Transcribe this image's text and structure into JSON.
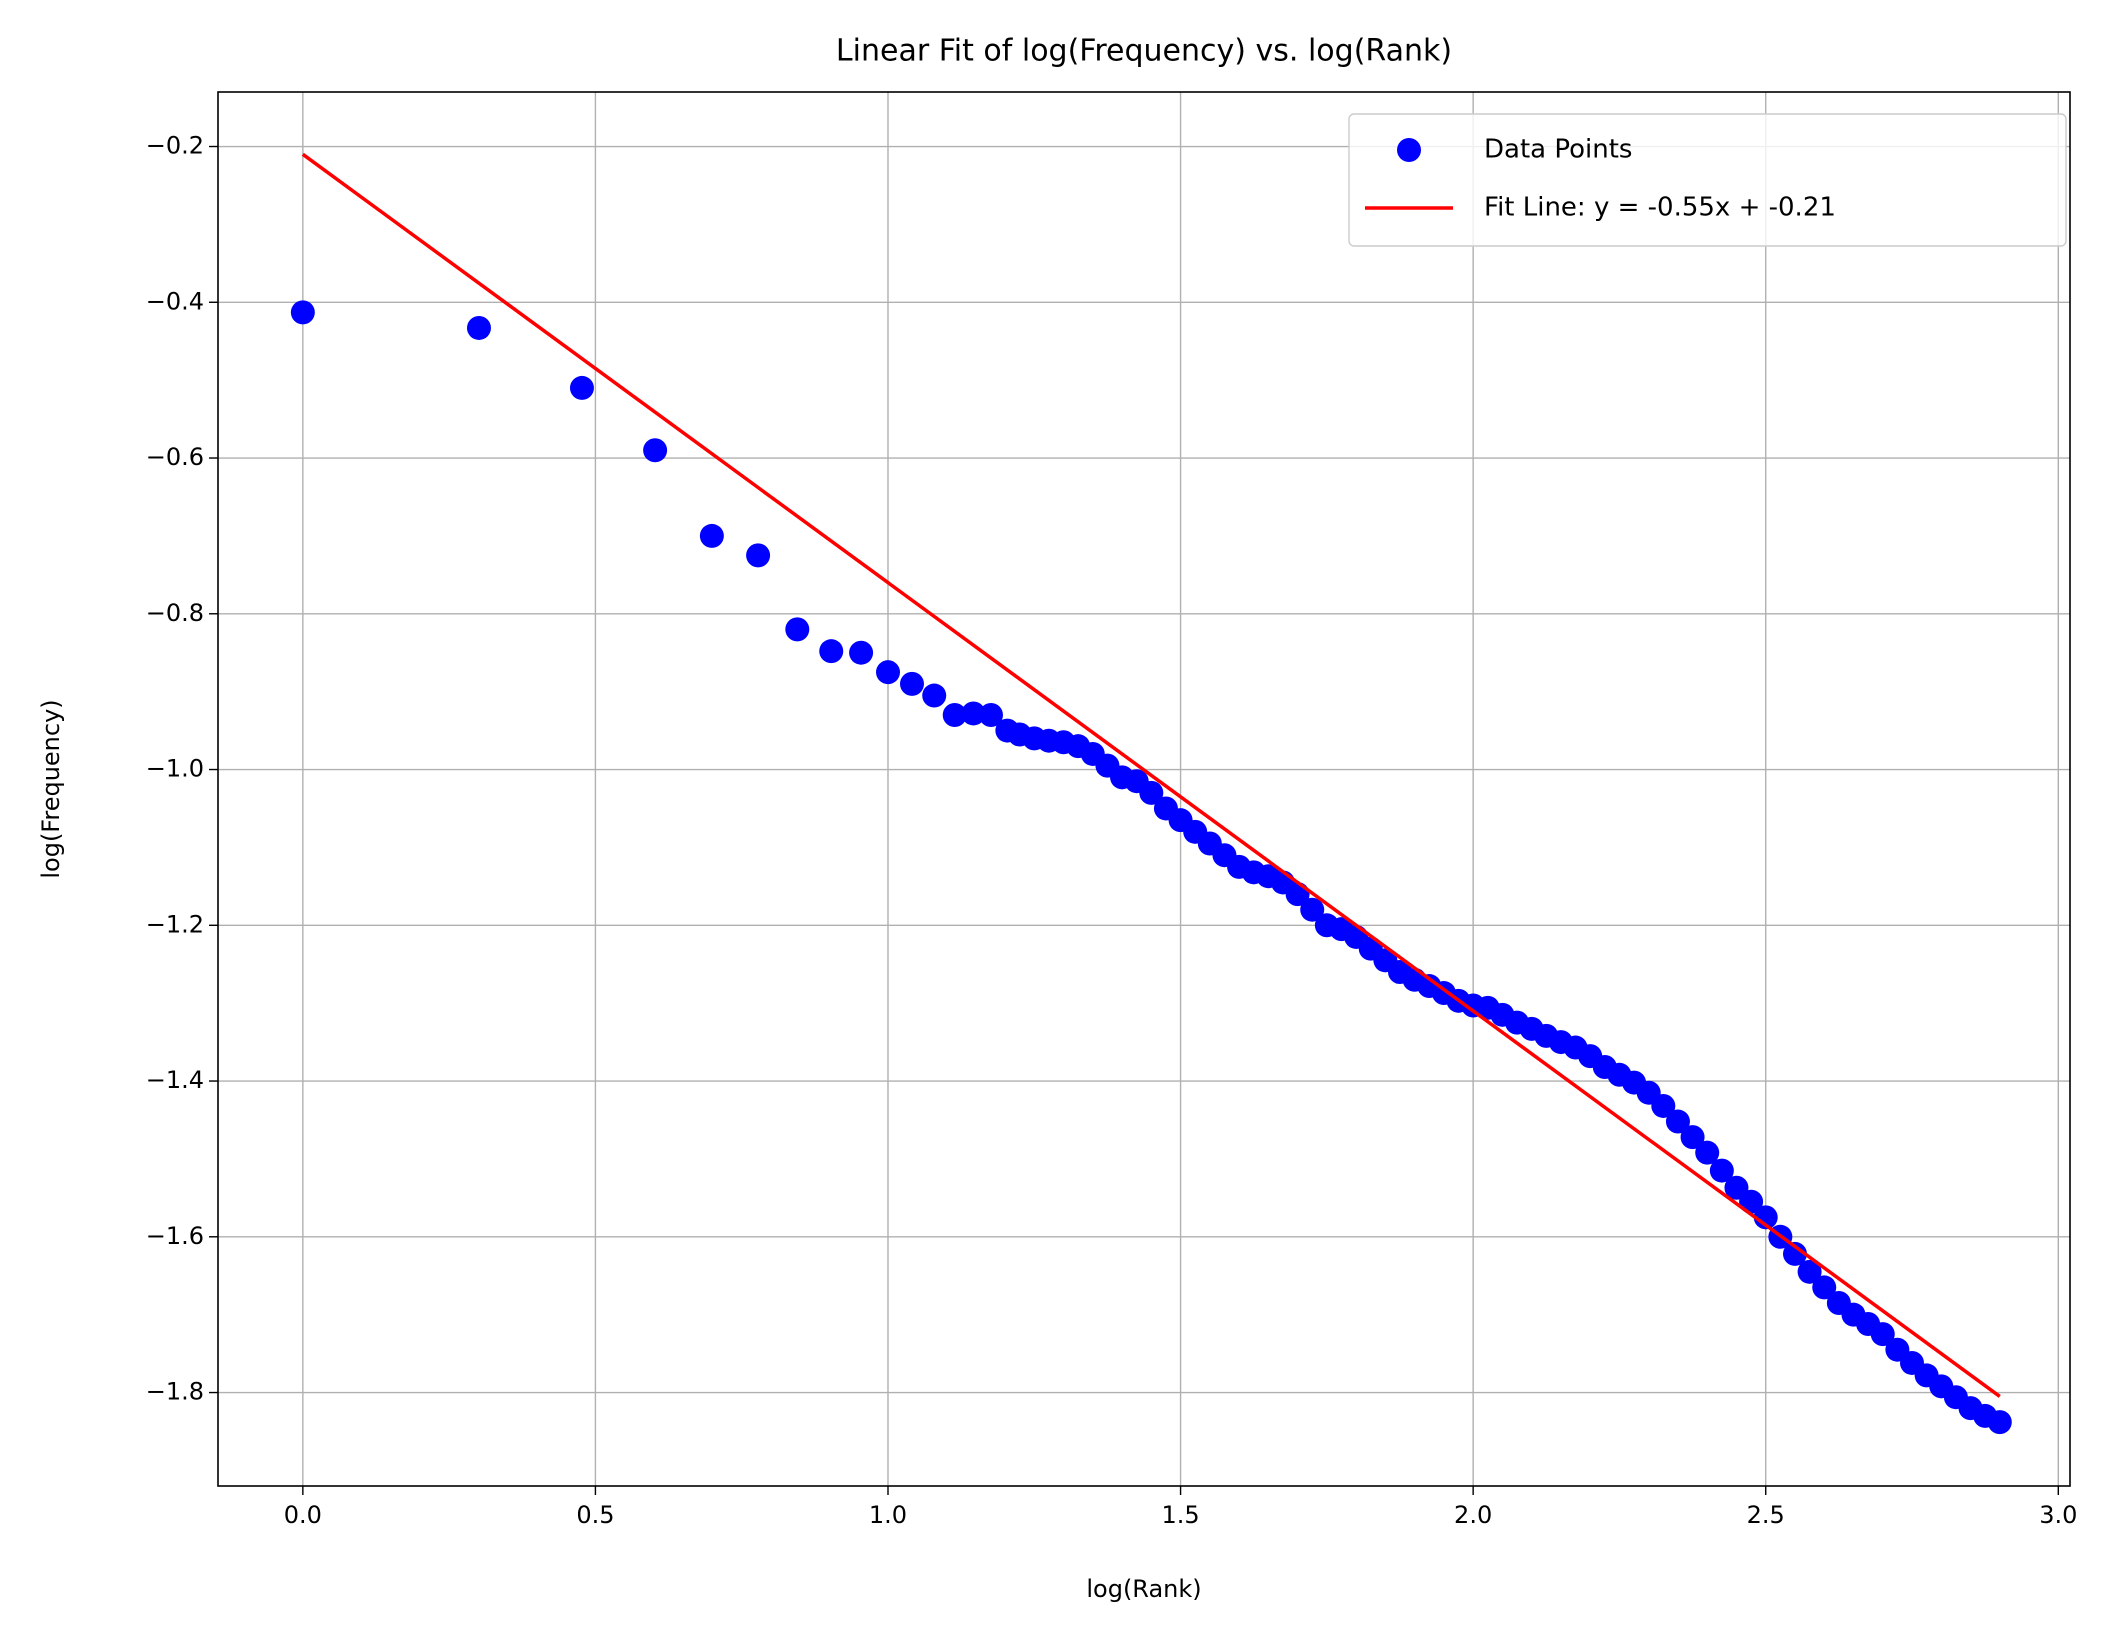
{
  "chart_data": {
    "type": "scatter",
    "title": "Linear Fit of log(Frequency) vs. log(Rank)",
    "x_label": "log(Rank)",
    "y_label": "log(Frequency)",
    "xlim": [
      -0.145,
      3.02
    ],
    "ylim": [
      -1.92,
      -0.13
    ],
    "xticks": [
      {
        "value": 0,
        "label": "0.0"
      },
      {
        "value": 0.5,
        "label": "0.5"
      },
      {
        "value": 1,
        "label": "1.0"
      },
      {
        "value": 1.5,
        "label": "1.5"
      },
      {
        "value": 2,
        "label": "2.0"
      },
      {
        "value": 2.5,
        "label": "2.5"
      },
      {
        "value": 3,
        "label": "3.0"
      }
    ],
    "yticks": [
      {
        "value": -0.2,
        "label": "−0.2"
      },
      {
        "value": -0.4,
        "label": "−0.4"
      },
      {
        "value": -0.6,
        "label": "−0.6"
      },
      {
        "value": -0.8,
        "label": "−0.8"
      },
      {
        "value": -1,
        "label": "−1.0"
      },
      {
        "value": -1.2,
        "label": "−1.2"
      },
      {
        "value": -1.4,
        "label": "−1.4"
      },
      {
        "value": -1.6,
        "label": "−1.6"
      },
      {
        "value": -1.8,
        "label": "−1.8"
      }
    ],
    "grid": true,
    "legend": "upper right",
    "series": [
      {
        "name": "Data Points",
        "type": "scatter",
        "color": "#0000ff",
        "x": [
          0,
          0.301,
          0.477,
          0.602,
          0.699,
          0.778,
          0.845,
          0.903,
          0.954,
          1.0,
          1.041,
          1.079,
          1.114,
          1.146,
          1.176,
          1.204,
          1.225,
          1.25,
          1.275,
          1.3,
          1.325,
          1.35,
          1.375,
          1.4,
          1.425,
          1.45,
          1.475,
          1.5,
          1.525,
          1.55,
          1.575,
          1.6,
          1.625,
          1.65,
          1.675,
          1.7,
          1.725,
          1.75,
          1.775,
          1.8,
          1.825,
          1.85,
          1.875,
          1.9,
          1.925,
          1.95,
          1.975,
          2.0,
          2.025,
          2.05,
          2.075,
          2.1,
          2.125,
          2.15,
          2.175,
          2.2,
          2.225,
          2.25,
          2.275,
          2.3,
          2.325,
          2.35,
          2.375,
          2.4,
          2.425,
          2.45,
          2.475,
          2.5,
          2.525,
          2.55,
          2.575,
          2.6,
          2.625,
          2.65,
          2.675,
          2.7,
          2.725,
          2.75,
          2.775,
          2.8,
          2.825,
          2.85,
          2.875,
          2.9
        ],
        "values": [
          -0.413,
          -0.433,
          -0.51,
          -0.59,
          -0.7,
          -0.725,
          -0.82,
          -0.848,
          -0.85,
          -0.875,
          -0.89,
          -0.905,
          -0.93,
          -0.928,
          -0.93,
          -0.95,
          -0.955,
          -0.96,
          -0.963,
          -0.965,
          -0.97,
          -0.98,
          -0.995,
          -1.01,
          -1.015,
          -1.03,
          -1.05,
          -1.065,
          -1.08,
          -1.095,
          -1.11,
          -1.125,
          -1.132,
          -1.137,
          -1.145,
          -1.16,
          -1.18,
          -1.2,
          -1.205,
          -1.215,
          -1.23,
          -1.245,
          -1.26,
          -1.27,
          -1.278,
          -1.287,
          -1.297,
          -1.303,
          -1.306,
          -1.315,
          -1.325,
          -1.333,
          -1.342,
          -1.35,
          -1.357,
          -1.368,
          -1.382,
          -1.392,
          -1.402,
          -1.415,
          -1.432,
          -1.452,
          -1.472,
          -1.492,
          -1.515,
          -1.537,
          -1.555,
          -1.575,
          -1.6,
          -1.622,
          -1.645,
          -1.665,
          -1.685,
          -1.7,
          -1.712,
          -1.725,
          -1.745,
          -1.762,
          -1.778,
          -1.792,
          -1.806,
          -1.82,
          -1.83,
          -1.838
        ]
      },
      {
        "name": "Fit Line: y = -0.55x + -0.21",
        "type": "line",
        "color": "#ff0000",
        "x": [
          0,
          2.9
        ],
        "values": [
          -0.21,
          -1.805
        ]
      }
    ]
  }
}
